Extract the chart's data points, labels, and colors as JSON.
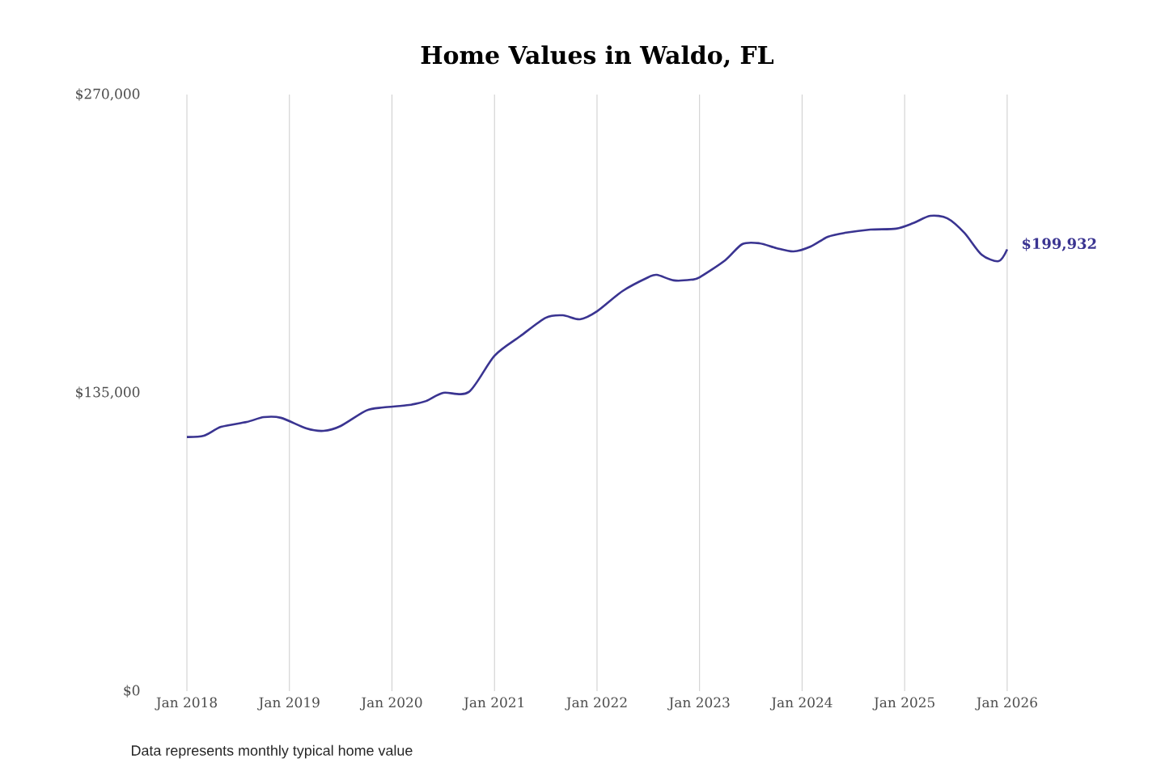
{
  "chart_data": {
    "type": "line",
    "title": "Home Values in Waldo, FL",
    "x": [
      "2018-01",
      "2018-03",
      "2018-05",
      "2018-08",
      "2018-10",
      "2018-12",
      "2019-03",
      "2019-05",
      "2019-07",
      "2019-10",
      "2019-12",
      "2020-03",
      "2020-05",
      "2020-07",
      "2020-10",
      "2021-01",
      "2021-04",
      "2021-07",
      "2021-09",
      "2021-11",
      "2022-01",
      "2022-04",
      "2022-07",
      "2022-08",
      "2022-10",
      "2022-12",
      "2023-01",
      "2023-04",
      "2023-06",
      "2023-08",
      "2023-10",
      "2023-12",
      "2024-02",
      "2024-04",
      "2024-06",
      "2024-09",
      "2024-12",
      "2025-02",
      "2025-04",
      "2025-06",
      "2025-08",
      "2025-10",
      "2025-12",
      "2026-01"
    ],
    "series": [
      {
        "color": "#3a3491",
        "values": [
          115000,
          115600,
          119600,
          121800,
          124000,
          123700,
          118900,
          117800,
          120000,
          127000,
          128400,
          129500,
          131300,
          135000,
          135400,
          151800,
          160600,
          169000,
          170100,
          168300,
          171900,
          181100,
          187300,
          188400,
          185900,
          186200,
          187300,
          195000,
          202300,
          202700,
          200500,
          199000,
          201200,
          205600,
          207400,
          208900,
          209300,
          211800,
          215100,
          214000,
          207400,
          197600,
          194600,
          199932
        ],
        "value_labels": [
          null,
          null,
          null,
          null,
          null,
          null,
          null,
          null,
          null,
          null,
          null,
          null,
          null,
          null,
          null,
          null,
          null,
          null,
          null,
          null,
          null,
          null,
          null,
          null,
          null,
          null,
          null,
          null,
          null,
          null,
          null,
          null,
          null,
          null,
          null,
          null,
          null,
          null,
          null,
          null,
          null,
          null,
          null,
          "$199,932"
        ]
      }
    ],
    "xlim": [
      "2018-01",
      "2026-01"
    ],
    "xticks": [
      {
        "value": "2018-01",
        "label": "Jan 2018"
      },
      {
        "value": "2019-01",
        "label": "Jan 2019"
      },
      {
        "value": "2020-01",
        "label": "Jan 2020"
      },
      {
        "value": "2021-01",
        "label": "Jan 2021"
      },
      {
        "value": "2022-01",
        "label": "Jan 2022"
      },
      {
        "value": "2023-01",
        "label": "Jan 2023"
      },
      {
        "value": "2024-01",
        "label": "Jan 2024"
      },
      {
        "value": "2025-01",
        "label": "Jan 2025"
      },
      {
        "value": "2026-01",
        "label": "Jan 2026"
      }
    ],
    "ylim": [
      0,
      270000
    ],
    "yticks": [
      {
        "value": 0,
        "label": "$0"
      },
      {
        "value": 135000,
        "label": "$135,000"
      },
      {
        "value": 270000,
        "label": "$270,000"
      }
    ],
    "grid": "x",
    "marker": "none",
    "line_style": "solid",
    "annotations": [
      "Data represents monthly typical home value"
    ]
  }
}
